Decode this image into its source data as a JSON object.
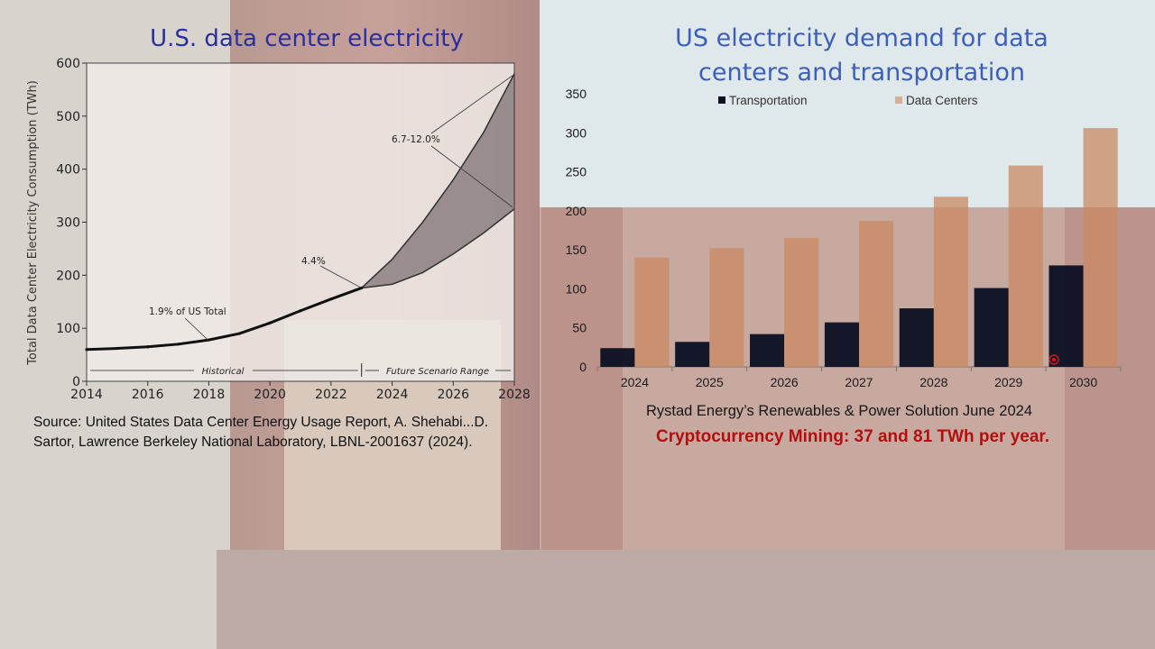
{
  "slide": {
    "left_title": "U.S. data center electricity",
    "right_title_line1": "US electricity demand for data",
    "right_title_line2": "centers and transportation",
    "left_source_line1": "Source: United States Data Center Energy Usage Report, A. Shehabi...D.",
    "left_source_line2": "Sartor,  Lawrence Berkeley National Laboratory, LBNL-2001637 (2024).",
    "right_source": "Rystad Energy’s Renewables & Power Solution June 2024",
    "crypto_note": "Cryptocurrency Mining:  37 and 81 TWh per year."
  },
  "colors": {
    "left_title": "#2a2f9e",
    "right_title": "#3e5fb8",
    "crypto_note": "#b21010",
    "transportation": "#0b0f22",
    "data_centers": "#c98a63",
    "projection_band": "#5a4a4e",
    "historical_line": "#111111"
  },
  "chart_data": [
    {
      "type": "line",
      "xlabel": "",
      "ylabel": "Total Data Center Electricity Consumption (TWh)",
      "xlim": [
        2014,
        2028
      ],
      "ylim": [
        0,
        600
      ],
      "x_ticks": [
        "2014",
        "2016",
        "2018",
        "2020",
        "2022",
        "2024",
        "2026",
        "2028"
      ],
      "y_ticks": [
        "0",
        "100",
        "200",
        "300",
        "400",
        "500",
        "600"
      ],
      "historical": {
        "x": [
          2014,
          2015,
          2016,
          2017,
          2018,
          2019,
          2020,
          2021,
          2022,
          2023
        ],
        "y": [
          60,
          62,
          65,
          70,
          78,
          90,
          110,
          133,
          155,
          176
        ]
      },
      "projection_upper": {
        "x": [
          2023,
          2024,
          2025,
          2026,
          2027,
          2028
        ],
        "y": [
          176,
          230,
          300,
          380,
          470,
          580
        ]
      },
      "projection_lower": {
        "x": [
          2023,
          2024,
          2025,
          2026,
          2027,
          2028
        ],
        "y": [
          176,
          183,
          205,
          240,
          280,
          325
        ]
      },
      "annotations": {
        "share_2018": "1.9% of US Total",
        "share_2023": "4.4%",
        "share_2028": "6.7-12.0%",
        "historical": "Historical",
        "future": "Future Scenario Range"
      }
    },
    {
      "type": "bar",
      "categories": [
        "2024",
        "2025",
        "2026",
        "2027",
        "2028",
        "2029",
        "2030"
      ],
      "series": [
        {
          "name": "Transportation",
          "values": [
            24,
            32,
            42,
            57,
            75,
            101,
            130
          ]
        },
        {
          "name": "Data Centers",
          "values": [
            140,
            152,
            165,
            187,
            218,
            258,
            306
          ]
        }
      ],
      "ylim": [
        0,
        350
      ],
      "y_ticks": [
        "0",
        "50",
        "100",
        "150",
        "200",
        "250",
        "300",
        "350"
      ],
      "legend": "top"
    }
  ]
}
